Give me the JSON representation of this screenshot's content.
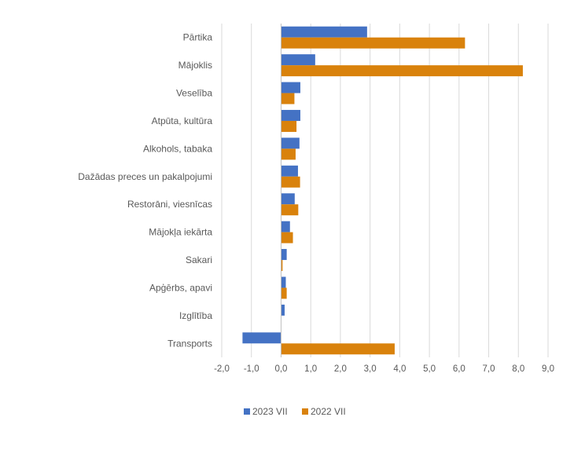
{
  "chart_data": {
    "type": "bar",
    "orientation": "horizontal",
    "categories": [
      "Pārtika",
      "Mājoklis",
      "Veselība",
      "Atpūta, kultūra",
      "Alkohols, tabaka",
      "Dažādas preces un pakalpojumi",
      "Restorāni, viesnīcas",
      "Mājokļa iekārta",
      "Sakari",
      "Apģērbs, apavi",
      "Izglītība",
      "Transports"
    ],
    "series": [
      {
        "name": "2023 VII",
        "color": "#4472c4",
        "values": [
          2.9,
          1.15,
          0.65,
          0.65,
          0.62,
          0.57,
          0.46,
          0.3,
          0.19,
          0.16,
          0.12,
          -1.3
        ]
      },
      {
        "name": "2022 VII",
        "color": "#d9820c",
        "values": [
          6.2,
          8.15,
          0.45,
          0.52,
          0.49,
          0.64,
          0.58,
          0.4,
          0.05,
          0.19,
          0.0,
          3.83
        ]
      }
    ],
    "xlim": [
      -2.0,
      9.0
    ],
    "x_ticks": [
      "-2,0",
      "-1,0",
      "0,0",
      "1,0",
      "2,0",
      "3,0",
      "4,0",
      "5,0",
      "6,0",
      "7,0",
      "8,0",
      "9,0"
    ],
    "grid": "vertical",
    "legend": "bottom",
    "title": "",
    "xlabel": "",
    "ylabel": ""
  }
}
